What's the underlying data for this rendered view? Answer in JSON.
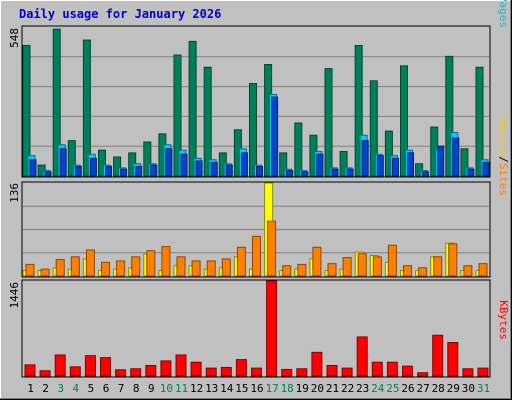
{
  "title": "Daily usage for January 2026",
  "chart_data": {
    "type": "bar",
    "title": "Daily usage for January 2026",
    "categories": [
      "1",
      "2",
      "3",
      "4",
      "5",
      "6",
      "7",
      "8",
      "9",
      "10",
      "11",
      "12",
      "13",
      "14",
      "15",
      "16",
      "17",
      "18",
      "19",
      "20",
      "21",
      "22",
      "23",
      "24",
      "25",
      "26",
      "27",
      "28",
      "29",
      "30",
      "31"
    ],
    "weekend_days": [
      "3",
      "4",
      "10",
      "11",
      "17",
      "18",
      "24",
      "25",
      "31"
    ],
    "panels": [
      {
        "id": "top",
        "ymax_label": "548",
        "ylim": [
          0,
          548
        ],
        "legend": [
          {
            "text": "Pages",
            "color": "#2db3c2"
          },
          {
            "text": "/",
            "color": "#000000"
          },
          {
            "text": "Files",
            "color": "#00a3ff"
          },
          {
            "text": "/",
            "color": "#000000"
          },
          {
            "text": "Hits",
            "color": "#1c8c62"
          }
        ],
        "series": [
          {
            "name": "Hits",
            "color": "#00805a",
            "values": [
              480,
              40,
              540,
              130,
              500,
              95,
              70,
              85,
              125,
              155,
              445,
              495,
              400,
              85,
              170,
              340,
              410,
              85,
              195,
              150,
              395,
              90,
              480,
              350,
              165,
              405,
              45,
              180,
              440,
              100,
              400
            ]
          },
          {
            "name": "Files",
            "color": "#00ccff",
            "values": [
              75,
              20,
              115,
              40,
              80,
              40,
              30,
              45,
              45,
              115,
              95,
              65,
              60,
              45,
              100,
              40,
              300,
              25,
              20,
              90,
              30,
              30,
              150,
              80,
              75,
              95,
              20,
              100,
              160,
              30,
              60
            ]
          },
          {
            "name": "Pages",
            "color": "#0044cc",
            "values": [
              60,
              15,
              100,
              35,
              65,
              35,
              25,
              35,
              40,
              100,
              80,
              55,
              50,
              40,
              85,
              35,
              290,
              20,
              15,
              80,
              25,
              25,
              130,
              75,
              65,
              85,
              15,
              110,
              140,
              25,
              50
            ]
          }
        ]
      },
      {
        "id": "middle",
        "ymax_label": "136",
        "ylim": [
          0,
          136
        ],
        "legend": [
          {
            "text": "Sites",
            "color": "#ff8000"
          },
          {
            "text": "/",
            "color": "#000000"
          },
          {
            "text": "Visits",
            "color": "#ffc800"
          }
        ],
        "series": [
          {
            "name": "Visits",
            "color": "#ffff00",
            "values": [
              8,
              8,
              12,
              10,
              25,
              8,
              10,
              12,
              32,
              8,
              15,
              15,
              10,
              12,
              28,
              10,
              136,
              8,
              10,
              25,
              8,
              10,
              35,
              30,
              20,
              8,
              8,
              28,
              48,
              8,
              8
            ]
          },
          {
            "name": "Sites",
            "color": "#ff8000",
            "values": [
              17,
              10,
              24,
              28,
              38,
              20,
              22,
              28,
              37,
              43,
              28,
              22,
              22,
              25,
              42,
              58,
              80,
              15,
              17,
              42,
              18,
              27,
              33,
              28,
              45,
              15,
              12,
              28,
              47,
              15,
              18
            ]
          }
        ]
      },
      {
        "id": "bottom",
        "ymax_label": "1446",
        "ylim": [
          0,
          1446
        ],
        "legend": [
          {
            "text": "KBytes",
            "color": "#ff0000"
          }
        ],
        "series": [
          {
            "name": "KBytes",
            "color": "#ff0000",
            "values": [
              170,
              80,
              320,
              140,
              310,
              280,
              95,
              110,
              160,
              230,
              320,
              210,
              120,
              130,
              250,
              120,
              1446,
              100,
              110,
              360,
              160,
              120,
              595,
              210,
              210,
              150,
              50,
              620,
              510,
              110,
              120
            ]
          }
        ]
      }
    ]
  }
}
